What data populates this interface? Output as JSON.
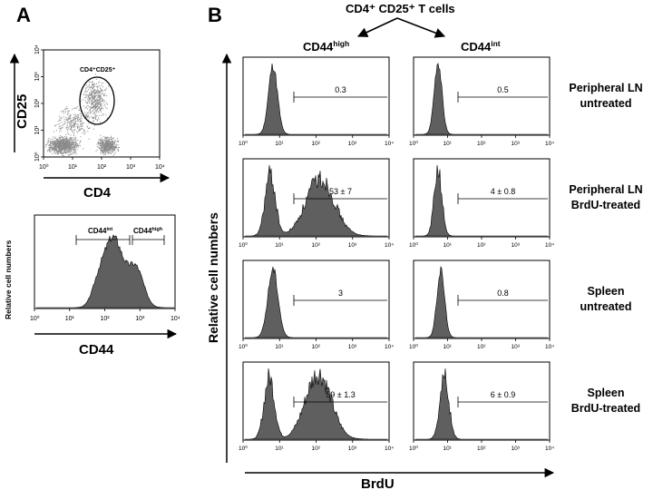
{
  "panel_a": {
    "letter": "A",
    "dotplot": {
      "y_label": "CD25",
      "x_label": "CD4",
      "gate_label": "CD4⁺CD25⁺",
      "x_ticks": [
        "10⁰",
        "10¹",
        "10²",
        "10³",
        "10⁴"
      ],
      "y_ticks": [
        "10⁰",
        "10¹",
        "10²",
        "10³",
        "10⁴"
      ]
    },
    "histogram": {
      "y_label": "Relative cell numbers",
      "x_label": "CD44",
      "gate_int": "CD44",
      "gate_int_sup": "int",
      "gate_high": "CD44",
      "gate_high_sup": "high",
      "x_ticks": [
        "10⁰",
        "10¹",
        "10²",
        "10³",
        "10⁴"
      ]
    }
  },
  "panel_b": {
    "letter": "B",
    "header": "CD4⁺ CD25⁺ T cells",
    "col_high": "CD44",
    "col_high_sup": "high",
    "col_int": "CD44",
    "col_int_sup": "int",
    "y_label": "Relative cell numbers",
    "x_label": "BrdU",
    "x_ticks": [
      "10⁰",
      "10¹",
      "10²",
      "10³",
      "10⁴"
    ],
    "rows": [
      {
        "label_1": "Peripheral LN",
        "label_2": "untreated",
        "value_high": "0.3",
        "value_int": "0.5"
      },
      {
        "label_1": "Peripheral LN",
        "label_2": "BrdU-treated",
        "value_high": "53 ± 7",
        "value_int": "4  ± 0.8"
      },
      {
        "label_1": "Spleen",
        "label_2": "untreated",
        "value_high": "3",
        "value_int": "0.8"
      },
      {
        "label_1": "Spleen",
        "label_2": "BrdU-treated",
        "value_high": "59 ± 1.3",
        "value_int": "6 ± 0.9"
      }
    ]
  },
  "colors": {
    "fill": "#5f5f5f",
    "line": "#000000",
    "dots": "#8a8a8a"
  }
}
